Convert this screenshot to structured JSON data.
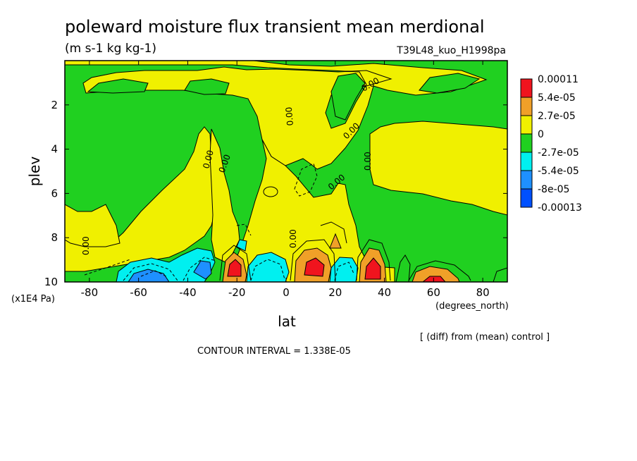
{
  "chart_data": {
    "type": "heatmap",
    "title": "poleward moisture flux transient mean merdional",
    "units": "(m s-1 kg kg-1)",
    "run_label": "T39L48_kuo_H1998pa",
    "xlabel": "lat",
    "x_unit_label": "(degrees_north)",
    "ylabel": "plev",
    "y_unit_label": "(x1E4 Pa)",
    "xlim": [
      -90,
      90
    ],
    "ylim": [
      10,
      0
    ],
    "x_ticks": [
      -80,
      -60,
      -40,
      -20,
      0,
      20,
      40,
      60,
      80
    ],
    "x_tick_labels": [
      "-80",
      "-60",
      "-40",
      "-20",
      "0",
      "20",
      "40",
      "60",
      "80"
    ],
    "y_ticks": [
      2,
      4,
      6,
      8,
      10
    ],
    "y_tick_labels": [
      "2",
      "4",
      "6",
      "8",
      "10"
    ],
    "contour_label": "0.00",
    "contour_interval_text": "CONTOUR INTERVAL = 1.338E-05",
    "diff_note": "[ (diff) from (mean) control ]",
    "colorbar": {
      "labels": [
        "0.00011",
        "5.4e-05",
        "2.7e-05",
        "0",
        "-2.7e-05",
        "-5.4e-05",
        "-8e-05",
        "-0.00013"
      ],
      "colors": [
        "#f0141e",
        "#f0a028",
        "#f0f000",
        "#20d020",
        "#00f0f0",
        "#1e90ff",
        "#0050ff"
      ]
    },
    "palette": {
      "red": "#f0141e",
      "orange": "#f0a028",
      "yellow": "#f0f000",
      "green": "#20d020",
      "cyan": "#00f0f0",
      "lightblue": "#1e90ff",
      "blue": "#0050ff"
    }
  }
}
